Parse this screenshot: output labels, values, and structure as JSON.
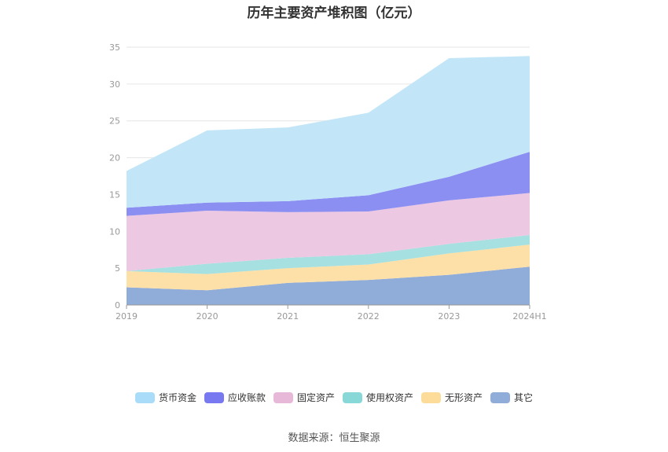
{
  "chart_data": {
    "type": "area",
    "stacked": true,
    "title": "历年主要资产堆积图（亿元）",
    "categories": [
      "2019",
      "2020",
      "2021",
      "2022",
      "2023",
      "2024H1"
    ],
    "ylim": [
      0,
      35
    ],
    "yticks": [
      0,
      5,
      10,
      15,
      20,
      25,
      30,
      35
    ],
    "grid": true,
    "legend_position": "bottom",
    "series": [
      {
        "name": "其它",
        "color": "#90acd8",
        "values": [
          2.4,
          2.0,
          3.0,
          3.4,
          4.1,
          5.2
        ]
      },
      {
        "name": "无形资产",
        "color": "#fde0a8",
        "values": [
          2.2,
          2.2,
          2.0,
          2.1,
          2.9,
          3.0
        ]
      },
      {
        "name": "使用权资产",
        "color": "#a6e0e0",
        "values": [
          0.0,
          1.4,
          1.4,
          1.4,
          1.3,
          1.3
        ]
      },
      {
        "name": "固定资产",
        "color": "#ecc8e2",
        "values": [
          7.5,
          7.2,
          6.2,
          5.8,
          5.9,
          5.7
        ]
      },
      {
        "name": "应收账款",
        "color": "#8c8ff2",
        "values": [
          1.1,
          1.1,
          1.5,
          2.2,
          3.2,
          5.6
        ]
      },
      {
        "name": "货币资金",
        "color": "#c2e6f8",
        "values": [
          5.0,
          9.8,
          10.0,
          11.2,
          16.1,
          13.0
        ]
      }
    ],
    "legend_order": [
      5,
      4,
      3,
      2,
      1,
      0
    ],
    "legend_colors": [
      "#a8dcf8",
      "#7878f0",
      "#e8b8d8",
      "#88d8d8",
      "#fcdc98",
      "#90acd8"
    ]
  },
  "footer": {
    "source": "数据来源：恒生聚源"
  }
}
